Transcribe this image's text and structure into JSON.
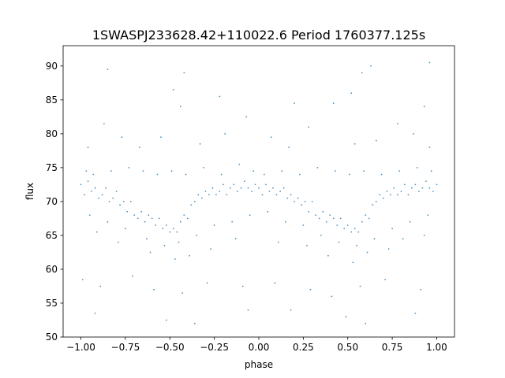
{
  "chart_data": {
    "type": "scatter",
    "title": "1SWASPJ233628.42+110022.6 Period 1760377.125s",
    "xlabel": "phase",
    "ylabel": "flux",
    "xlim": [
      -1.1,
      1.1
    ],
    "ylim": [
      50,
      93
    ],
    "xticks": [
      -1.0,
      -0.75,
      -0.5,
      -0.25,
      0.0,
      0.25,
      0.5,
      0.75,
      1.0
    ],
    "xtick_labels": [
      "−1.00",
      "−0.75",
      "−0.50",
      "−0.25",
      "0.00",
      "0.25",
      "0.50",
      "0.75",
      "1.00"
    ],
    "yticks": [
      50,
      55,
      60,
      65,
      70,
      75,
      80,
      85,
      90
    ],
    "ytick_labels": [
      "50",
      "55",
      "60",
      "65",
      "70",
      "75",
      "80",
      "85",
      "90"
    ],
    "grid": false,
    "series": [
      {
        "color": "#1f77b4",
        "points": [
          [
            -1.0,
            72.5
          ],
          [
            -0.98,
            71.0
          ],
          [
            -0.96,
            73.0
          ],
          [
            -0.94,
            71.5
          ],
          [
            -0.92,
            72.0
          ],
          [
            -0.9,
            70.5
          ],
          [
            -0.88,
            71.0
          ],
          [
            -0.86,
            72.0
          ],
          [
            -0.84,
            70.0
          ],
          [
            -0.82,
            70.5
          ],
          [
            -0.8,
            71.5
          ],
          [
            -0.78,
            69.5
          ],
          [
            -0.76,
            70.0
          ],
          [
            -0.74,
            68.5
          ],
          [
            -0.72,
            70.0
          ],
          [
            -0.7,
            68.0
          ],
          [
            -0.68,
            67.5
          ],
          [
            -0.66,
            68.5
          ],
          [
            -0.64,
            67.0
          ],
          [
            -0.62,
            68.0
          ],
          [
            -0.6,
            67.5
          ],
          [
            -0.58,
            66.5
          ],
          [
            -0.56,
            67.5
          ],
          [
            -0.54,
            66.0
          ],
          [
            -0.52,
            66.5
          ],
          [
            -0.5,
            65.5
          ],
          [
            -0.48,
            66.0
          ],
          [
            -0.46,
            65.5
          ],
          [
            -0.44,
            67.0
          ],
          [
            -0.42,
            68.0
          ],
          [
            -0.4,
            67.5
          ],
          [
            -0.38,
            69.5
          ],
          [
            -0.36,
            70.0
          ],
          [
            -0.34,
            71.0
          ],
          [
            -0.32,
            70.5
          ],
          [
            -0.3,
            71.5
          ],
          [
            -0.28,
            71.0
          ],
          [
            -0.26,
            72.0
          ],
          [
            -0.24,
            71.0
          ],
          [
            -0.22,
            71.5
          ],
          [
            -0.2,
            72.5
          ],
          [
            -0.18,
            71.0
          ],
          [
            -0.16,
            72.0
          ],
          [
            -0.14,
            72.5
          ],
          [
            -0.12,
            71.5
          ],
          [
            -0.1,
            72.0
          ],
          [
            -0.08,
            73.0
          ],
          [
            -0.06,
            72.0
          ],
          [
            -0.04,
            71.5
          ],
          [
            -0.02,
            72.5
          ],
          [
            0.0,
            72.0
          ],
          [
            0.02,
            71.0
          ],
          [
            0.04,
            72.5
          ],
          [
            0.06,
            71.5
          ],
          [
            0.08,
            72.0
          ],
          [
            0.1,
            71.0
          ],
          [
            0.12,
            71.5
          ],
          [
            0.14,
            72.0
          ],
          [
            0.16,
            70.5
          ],
          [
            0.18,
            71.0
          ],
          [
            0.2,
            70.0
          ],
          [
            0.22,
            70.5
          ],
          [
            0.24,
            69.5
          ],
          [
            0.26,
            70.0
          ],
          [
            0.28,
            68.5
          ],
          [
            0.3,
            70.0
          ],
          [
            0.32,
            68.0
          ],
          [
            0.34,
            67.5
          ],
          [
            0.36,
            68.5
          ],
          [
            0.38,
            67.0
          ],
          [
            0.4,
            68.0
          ],
          [
            0.42,
            67.5
          ],
          [
            0.44,
            66.5
          ],
          [
            0.46,
            67.5
          ],
          [
            0.48,
            66.0
          ],
          [
            0.5,
            66.5
          ],
          [
            0.52,
            65.5
          ],
          [
            0.54,
            66.0
          ],
          [
            0.56,
            65.5
          ],
          [
            0.58,
            67.0
          ],
          [
            0.6,
            68.0
          ],
          [
            0.62,
            67.5
          ],
          [
            0.64,
            69.5
          ],
          [
            0.66,
            70.0
          ],
          [
            0.68,
            71.0
          ],
          [
            0.7,
            70.5
          ],
          [
            0.72,
            71.5
          ],
          [
            0.74,
            71.0
          ],
          [
            0.76,
            72.0
          ],
          [
            0.78,
            71.0
          ],
          [
            0.8,
            71.5
          ],
          [
            0.82,
            72.5
          ],
          [
            0.84,
            71.0
          ],
          [
            0.86,
            72.0
          ],
          [
            0.88,
            72.5
          ],
          [
            0.9,
            71.5
          ],
          [
            0.92,
            72.0
          ],
          [
            0.94,
            73.0
          ],
          [
            0.96,
            72.0
          ],
          [
            0.98,
            71.5
          ],
          [
            1.0,
            72.5
          ],
          [
            -0.97,
            74.5
          ],
          [
            -0.93,
            74.0
          ],
          [
            -0.83,
            74.5
          ],
          [
            -0.73,
            75.0
          ],
          [
            -0.65,
            74.5
          ],
          [
            -0.57,
            74.0
          ],
          [
            -0.49,
            74.5
          ],
          [
            -0.41,
            74.0
          ],
          [
            -0.31,
            75.0
          ],
          [
            -0.21,
            74.0
          ],
          [
            -0.11,
            75.5
          ],
          [
            -0.03,
            74.5
          ],
          [
            0.03,
            74.0
          ],
          [
            0.13,
            74.5
          ],
          [
            0.23,
            74.0
          ],
          [
            0.33,
            75.0
          ],
          [
            0.43,
            74.5
          ],
          [
            0.51,
            74.0
          ],
          [
            0.59,
            74.5
          ],
          [
            0.69,
            74.0
          ],
          [
            0.79,
            74.5
          ],
          [
            0.89,
            75.0
          ],
          [
            0.97,
            74.5
          ],
          [
            -0.95,
            68.0
          ],
          [
            -0.85,
            67.0
          ],
          [
            -0.75,
            66.0
          ],
          [
            -0.63,
            64.5
          ],
          [
            -0.53,
            63.5
          ],
          [
            -0.45,
            64.0
          ],
          [
            -0.35,
            65.0
          ],
          [
            -0.25,
            66.5
          ],
          [
            -0.15,
            67.0
          ],
          [
            -0.05,
            68.0
          ],
          [
            0.05,
            68.5
          ],
          [
            0.15,
            67.0
          ],
          [
            0.25,
            66.5
          ],
          [
            0.35,
            65.0
          ],
          [
            0.45,
            64.0
          ],
          [
            0.55,
            63.5
          ],
          [
            0.65,
            64.5
          ],
          [
            0.75,
            66.0
          ],
          [
            0.85,
            67.0
          ],
          [
            0.95,
            68.0
          ],
          [
            -0.91,
            65.5
          ],
          [
            -0.79,
            64.0
          ],
          [
            -0.61,
            62.5
          ],
          [
            -0.47,
            61.5
          ],
          [
            -0.39,
            62.0
          ],
          [
            -0.27,
            63.0
          ],
          [
            -0.13,
            64.5
          ],
          [
            0.11,
            64.0
          ],
          [
            0.27,
            63.5
          ],
          [
            0.39,
            62.0
          ],
          [
            0.53,
            61.0
          ],
          [
            0.61,
            62.5
          ],
          [
            0.73,
            63.0
          ],
          [
            0.81,
            64.5
          ],
          [
            0.93,
            65.0
          ],
          [
            -0.99,
            58.5
          ],
          [
            -0.89,
            57.5
          ],
          [
            -0.71,
            59.0
          ],
          [
            -0.59,
            57.0
          ],
          [
            -0.43,
            56.5
          ],
          [
            -0.29,
            58.0
          ],
          [
            -0.09,
            57.5
          ],
          [
            0.09,
            58.0
          ],
          [
            0.29,
            57.0
          ],
          [
            0.41,
            56.0
          ],
          [
            0.57,
            57.5
          ],
          [
            0.71,
            58.5
          ],
          [
            0.91,
            57.0
          ],
          [
            -0.92,
            53.5
          ],
          [
            -0.52,
            52.5
          ],
          [
            -0.36,
            52.0
          ],
          [
            0.18,
            54.0
          ],
          [
            0.49,
            53.0
          ],
          [
            0.6,
            52.0
          ],
          [
            0.88,
            53.5
          ],
          [
            -0.06,
            54.0
          ],
          [
            -0.96,
            78.0
          ],
          [
            -0.87,
            81.5
          ],
          [
            -0.77,
            79.5
          ],
          [
            -0.67,
            78.0
          ],
          [
            -0.55,
            79.5
          ],
          [
            -0.44,
            84.0
          ],
          [
            -0.33,
            78.5
          ],
          [
            -0.19,
            80.0
          ],
          [
            -0.07,
            82.5
          ],
          [
            0.07,
            79.5
          ],
          [
            0.17,
            78.0
          ],
          [
            0.28,
            81.0
          ],
          [
            0.42,
            84.5
          ],
          [
            0.54,
            78.5
          ],
          [
            0.66,
            79.0
          ],
          [
            0.78,
            81.5
          ],
          [
            0.87,
            80.0
          ],
          [
            0.96,
            78.0
          ],
          [
            -0.85,
            89.5
          ],
          [
            -0.48,
            86.5
          ],
          [
            -0.42,
            89.0
          ],
          [
            0.52,
            86.0
          ],
          [
            0.58,
            89.0
          ],
          [
            0.63,
            90.0
          ],
          [
            0.96,
            90.5
          ],
          [
            -0.22,
            85.5
          ],
          [
            0.2,
            84.5
          ],
          [
            0.93,
            84.0
          ]
        ]
      }
    ]
  }
}
